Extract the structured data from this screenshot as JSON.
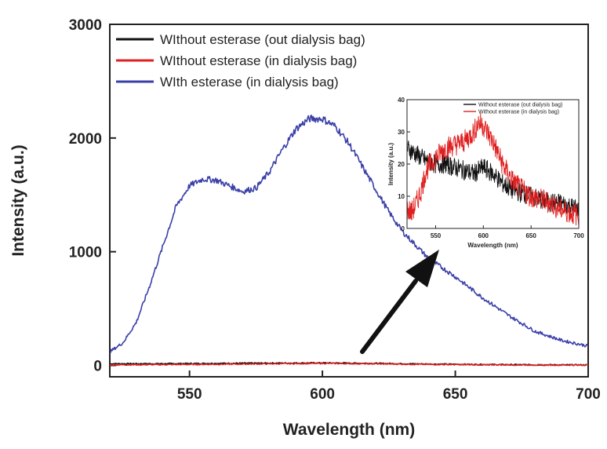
{
  "chart_data": [
    {
      "type": "line",
      "xlabel": "Wavelength (nm)",
      "ylabel": "Intensity (a.u.)",
      "xlim": [
        520,
        700
      ],
      "ylim": [
        -100,
        3000
      ],
      "xticks": [
        550,
        600,
        650,
        700
      ],
      "yticks": [
        0,
        1000,
        2000,
        3000
      ],
      "legend_position": "top-left",
      "series": [
        {
          "name": "WIthout esterase (out dialysis bag)",
          "color": "#111111",
          "x": [
            520,
            540,
            560,
            580,
            600,
            620,
            640,
            660,
            680,
            700
          ],
          "y": [
            15,
            15,
            18,
            20,
            22,
            18,
            12,
            8,
            5,
            4
          ]
        },
        {
          "name": "WIthout esterase (in dialysis bag)",
          "color": "#e02020",
          "x": [
            520,
            540,
            560,
            580,
            600,
            620,
            640,
            660,
            680,
            700
          ],
          "y": [
            5,
            7,
            10,
            14,
            18,
            14,
            9,
            6,
            4,
            3
          ]
        },
        {
          "name": "WIth esterase (in dialysis bag)",
          "color": "#3a3fa8",
          "x": [
            520,
            525,
            530,
            535,
            540,
            545,
            550,
            555,
            560,
            565,
            570,
            575,
            580,
            585,
            590,
            595,
            600,
            605,
            610,
            615,
            620,
            625,
            630,
            640,
            650,
            660,
            670,
            680,
            690,
            700
          ],
          "y": [
            120,
            200,
            380,
            700,
            1050,
            1400,
            1580,
            1640,
            1630,
            1580,
            1530,
            1560,
            1700,
            1900,
            2080,
            2170,
            2170,
            2100,
            1950,
            1750,
            1550,
            1350,
            1180,
            940,
            780,
            600,
            440,
            300,
            220,
            170
          ]
        }
      ]
    },
    {
      "type": "line",
      "xlabel": "Wavelength (nm)",
      "ylabel": "Intensity (a.u.)",
      "xlim": [
        520,
        700
      ],
      "ylim": [
        0,
        40
      ],
      "xticks": [
        550,
        600,
        650,
        700
      ],
      "yticks": [
        0,
        10,
        20,
        30,
        40
      ],
      "legend_position": "top-right",
      "series": [
        {
          "name": "Without esterase (out dialysis bag)",
          "color": "#111111",
          "x": [
            520,
            530,
            540,
            550,
            560,
            570,
            580,
            590,
            600,
            610,
            620,
            630,
            640,
            650,
            660,
            670,
            680,
            690,
            700
          ],
          "y": [
            25,
            23,
            21,
            20,
            20,
            19,
            18,
            17,
            19,
            17,
            14,
            12,
            11,
            10,
            9,
            8,
            8,
            7,
            6
          ]
        },
        {
          "name": "Without esterase (in dialysis bag)",
          "color": "#e02020",
          "x": [
            520,
            525,
            530,
            535,
            540,
            550,
            560,
            570,
            580,
            590,
            595,
            600,
            610,
            620,
            630,
            640,
            650,
            660,
            670,
            680,
            690,
            700
          ],
          "y": [
            6,
            5,
            8,
            12,
            18,
            22,
            25,
            26,
            27,
            30,
            33,
            32,
            27,
            20,
            15,
            12,
            10,
            9,
            8,
            6,
            5,
            4
          ]
        }
      ]
    }
  ],
  "ui": {
    "arrow_color": "#111111"
  }
}
